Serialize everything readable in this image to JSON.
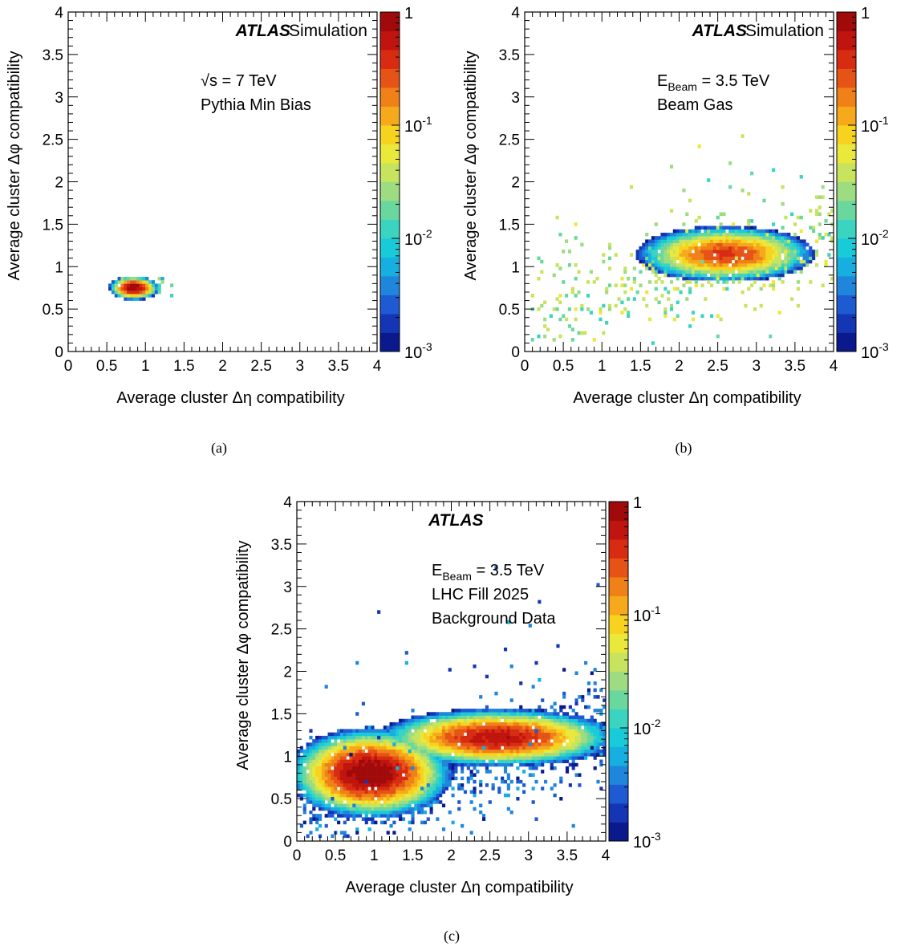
{
  "colors": {
    "axis": "#000000",
    "background": "#ffffff",
    "palette": [
      "#0a1a8c",
      "#1436b4",
      "#1e5ad2",
      "#1f86dc",
      "#17aee0",
      "#19cbd8",
      "#3ad4c0",
      "#6ad79f",
      "#9ddc80",
      "#c8e35e",
      "#ebe83c",
      "#f7d21e",
      "#f6a91a",
      "#f08018",
      "#e65316",
      "#d82c12",
      "#c0140e",
      "#a00a0a"
    ]
  },
  "panels": [
    {
      "caption": "(a)",
      "texts": {
        "atlas": "ATLAS",
        "sim": "Simulation",
        "line1": "√s = 7 TeV",
        "line2": "Pythia Min Bias",
        "line3": ""
      },
      "chart_data": {
        "type": "heatmap",
        "xlabel": "Average cluster Δη compatibility",
        "ylabel": "Average cluster Δφ compatibility",
        "xlim": [
          0,
          4
        ],
        "ylim": [
          0,
          4
        ],
        "xticks": [
          "0",
          "0.5",
          "1",
          "1.5",
          "2",
          "2.5",
          "3",
          "3.5",
          "4"
        ],
        "yticks": [
          "0",
          "0.5",
          "1",
          "1.5",
          "2",
          "2.5",
          "3",
          "3.5",
          "4"
        ],
        "zscale": "log",
        "zlim": [
          0.001,
          1
        ],
        "zticks": [
          {
            "base": "1",
            "exp": ""
          },
          {
            "base": "10",
            "exp": "-1"
          },
          {
            "base": "10",
            "exp": "-2"
          },
          {
            "base": "10",
            "exp": "-3"
          }
        ],
        "clusters": [
          {
            "x": 0.85,
            "y": 0.75,
            "sx": 0.09,
            "sy": 0.04,
            "peak": 1.0,
            "density": 1.0
          }
        ],
        "scatter_region": {
          "xmin": 0.6,
          "xmax": 1.35,
          "ymin": 0.65,
          "ymax": 0.85,
          "count": 25,
          "level": 0.01
        }
      }
    },
    {
      "caption": "(b)",
      "texts": {
        "atlas": "ATLAS",
        "sim": "Simulation",
        "line1": "E",
        "line1sub": "Beam",
        "line1rest": " = 3.5 TeV",
        "line2": "Beam Gas",
        "line3": ""
      },
      "chart_data": {
        "type": "heatmap",
        "xlabel": "Average cluster Δη compatibility",
        "ylabel": "Average cluster Δφ compatibility",
        "xlim": [
          0,
          4
        ],
        "ylim": [
          0,
          4
        ],
        "xticks": [
          "0",
          "0.5",
          "1",
          "1.5",
          "2",
          "2.5",
          "3",
          "3.5",
          "4"
        ],
        "yticks": [
          "0",
          "0.5",
          "1",
          "1.5",
          "2",
          "2.5",
          "3",
          "3.5",
          "4"
        ],
        "zscale": "log",
        "zlim": [
          0.001,
          1
        ],
        "zticks": [
          {
            "base": "1",
            "exp": ""
          },
          {
            "base": "10",
            "exp": "-1"
          },
          {
            "base": "10",
            "exp": "-2"
          },
          {
            "base": "10",
            "exp": "-3"
          }
        ],
        "clusters": [
          {
            "x": 2.6,
            "y": 1.15,
            "sx": 0.35,
            "sy": 0.1,
            "peak": 0.35,
            "density": 1.0
          }
        ],
        "scatter_region": {
          "xmin": 0.1,
          "xmax": 4.0,
          "ymin": 0.1,
          "ymax": 2.6,
          "count": 420,
          "level": 0.02,
          "trend": [
            0.4,
            0.2
          ]
        }
      }
    },
    {
      "caption": "(c)",
      "texts": {
        "atlas": "ATLAS",
        "sim": "",
        "line1": "E",
        "line1sub": "Beam",
        "line1rest": " = 3.5 TeV",
        "line2": "LHC Fill 2025",
        "line3": "Background Data"
      },
      "chart_data": {
        "type": "heatmap",
        "xlabel": "Average cluster Δη compatibility",
        "ylabel": "Average cluster Δφ compatibility",
        "xlim": [
          0,
          4
        ],
        "ylim": [
          0,
          4
        ],
        "xticks": [
          "0",
          "0.5",
          "1",
          "1.5",
          "2",
          "2.5",
          "3",
          "3.5",
          "4"
        ],
        "yticks": [
          "0",
          "0.5",
          "1",
          "1.5",
          "2",
          "2.5",
          "3",
          "3.5",
          "4"
        ],
        "zscale": "log",
        "zlim": [
          0.001,
          1
        ],
        "zticks": [
          {
            "base": "1",
            "exp": ""
          },
          {
            "base": "10",
            "exp": "-1"
          },
          {
            "base": "10",
            "exp": "-2"
          },
          {
            "base": "10",
            "exp": "-3"
          }
        ],
        "clusters": [
          {
            "x": 0.95,
            "y": 0.8,
            "sx": 0.3,
            "sy": 0.15,
            "peak": 1.0,
            "density": 1.0
          },
          {
            "x": 2.6,
            "y": 1.22,
            "sx": 0.45,
            "sy": 0.1,
            "peak": 0.6,
            "density": 1.0
          }
        ],
        "scatter_region": {
          "xmin": 0.05,
          "xmax": 4.0,
          "ymin": 0.05,
          "ymax": 3.6,
          "count": 900,
          "level": 0.002,
          "trend": [
            0.35,
            0.25
          ]
        }
      }
    }
  ]
}
